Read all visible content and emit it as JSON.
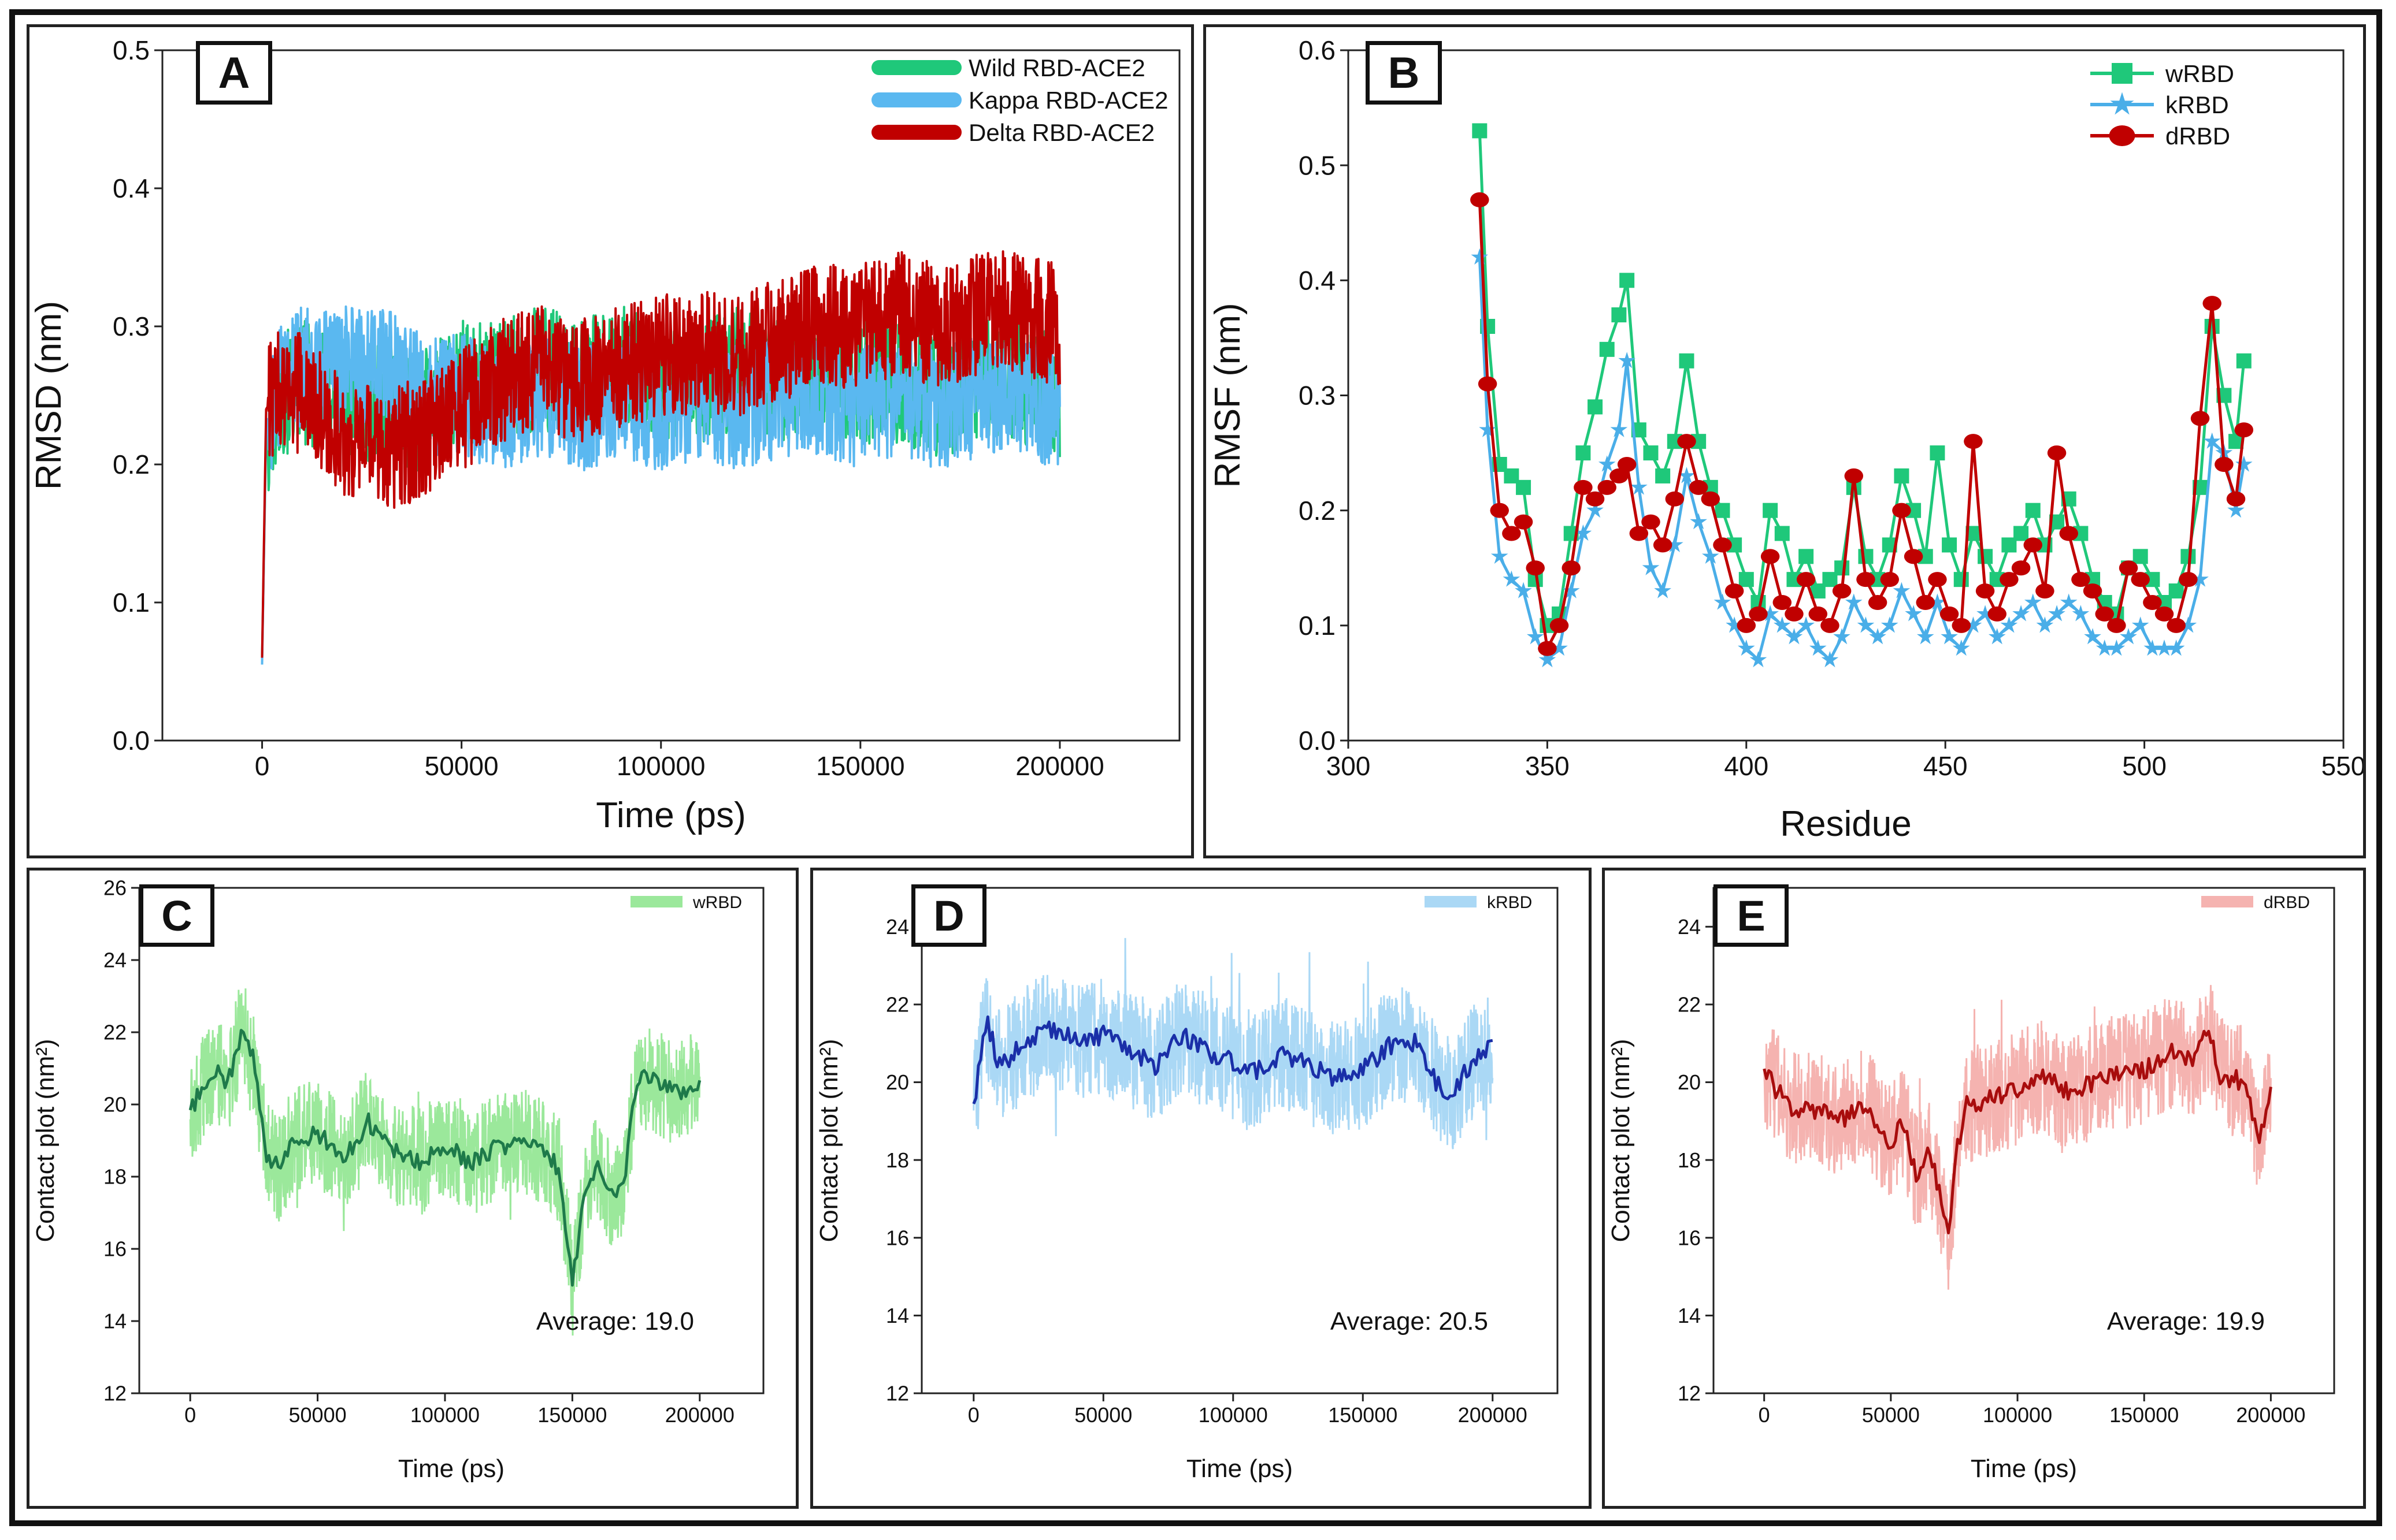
{
  "chart_data": [
    {
      "id": "A",
      "type": "line",
      "letter": "A",
      "xlabel": "Time (ps)",
      "ylabel": "RMSD (nm)",
      "xlim": [
        -25000,
        230000
      ],
      "ylim": [
        0,
        0.5
      ],
      "xticks": [
        0,
        50000,
        100000,
        150000,
        200000
      ],
      "xtick_labels": [
        "0",
        "50000",
        "100000",
        "150000",
        "200000"
      ],
      "yticks": [
        0,
        0.1,
        0.2,
        0.3,
        0.4,
        0.5
      ],
      "ytick_labels": [
        "0.0",
        "0.1",
        "0.2",
        "0.3",
        "0.4",
        "0.5"
      ],
      "legend_position": "top-right",
      "series": [
        {
          "name": "Wild RBD-ACE2",
          "color": "#1fc87a",
          "x": [
            0,
            1000,
            5000,
            10000,
            20000,
            30000,
            40000,
            50000,
            60000,
            70000,
            80000,
            90000,
            100000,
            110000,
            120000,
            130000,
            140000,
            150000,
            160000,
            170000,
            180000,
            190000,
            200000
          ],
          "values": [
            0.06,
            0.22,
            0.25,
            0.26,
            0.25,
            0.24,
            0.24,
            0.26,
            0.26,
            0.27,
            0.26,
            0.27,
            0.26,
            0.26,
            0.27,
            0.26,
            0.27,
            0.26,
            0.26,
            0.25,
            0.26,
            0.26,
            0.25
          ]
        },
        {
          "name": "Kappa RBD-ACE2",
          "color": "#5ab8f0",
          "x": [
            0,
            1000,
            5000,
            10000,
            20000,
            30000,
            40000,
            50000,
            60000,
            70000,
            80000,
            90000,
            100000,
            110000,
            120000,
            130000,
            140000,
            150000,
            160000,
            170000,
            180000,
            190000,
            200000
          ],
          "values": [
            0.055,
            0.23,
            0.26,
            0.27,
            0.27,
            0.27,
            0.25,
            0.25,
            0.24,
            0.25,
            0.24,
            0.25,
            0.24,
            0.25,
            0.24,
            0.25,
            0.25,
            0.24,
            0.25,
            0.24,
            0.25,
            0.25,
            0.24
          ]
        },
        {
          "name": "Delta RBD-ACE2",
          "color": "#c00000",
          "x": [
            0,
            1000,
            5000,
            10000,
            20000,
            30000,
            40000,
            50000,
            60000,
            70000,
            80000,
            90000,
            100000,
            110000,
            120000,
            130000,
            140000,
            150000,
            160000,
            170000,
            180000,
            190000,
            200000
          ],
          "values": [
            0.06,
            0.24,
            0.26,
            0.25,
            0.22,
            0.21,
            0.22,
            0.24,
            0.26,
            0.27,
            0.26,
            0.27,
            0.28,
            0.28,
            0.28,
            0.29,
            0.3,
            0.3,
            0.31,
            0.3,
            0.31,
            0.31,
            0.3
          ]
        }
      ]
    },
    {
      "id": "B",
      "type": "line",
      "letter": "B",
      "xlabel": "Residue",
      "ylabel": "RMSF (nm)",
      "xlim": [
        300,
        550
      ],
      "ylim": [
        0,
        0.6
      ],
      "xticks": [
        300,
        350,
        400,
        450,
        500,
        550
      ],
      "xtick_labels": [
        "300",
        "350",
        "400",
        "450",
        "500",
        "550"
      ],
      "yticks": [
        0,
        0.1,
        0.2,
        0.3,
        0.4,
        0.5,
        0.6
      ],
      "ytick_labels": [
        "0.0",
        "0.1",
        "0.2",
        "0.3",
        "0.4",
        "0.5",
        "0.6"
      ],
      "legend_position": "top-right",
      "series": [
        {
          "name": "wRBD",
          "color": "#1fc87a",
          "marker": "square",
          "x": [
            333,
            335,
            338,
            341,
            344,
            347,
            350,
            353,
            356,
            359,
            362,
            365,
            368,
            370,
            373,
            376,
            379,
            382,
            385,
            388,
            391,
            394,
            397,
            400,
            403,
            406,
            409,
            412,
            415,
            418,
            421,
            424,
            427,
            430,
            433,
            436,
            439,
            442,
            445,
            448,
            451,
            454,
            457,
            460,
            463,
            466,
            469,
            472,
            475,
            478,
            481,
            484,
            487,
            490,
            493,
            496,
            499,
            502,
            505,
            508,
            511,
            514,
            517,
            520,
            523,
            525
          ],
          "values": [
            0.53,
            0.36,
            0.24,
            0.23,
            0.22,
            0.14,
            0.1,
            0.11,
            0.18,
            0.25,
            0.29,
            0.34,
            0.37,
            0.4,
            0.27,
            0.25,
            0.23,
            0.26,
            0.33,
            0.26,
            0.22,
            0.2,
            0.17,
            0.14,
            0.12,
            0.2,
            0.18,
            0.14,
            0.16,
            0.13,
            0.14,
            0.15,
            0.22,
            0.16,
            0.14,
            0.17,
            0.23,
            0.2,
            0.16,
            0.25,
            0.17,
            0.14,
            0.18,
            0.16,
            0.14,
            0.17,
            0.18,
            0.2,
            0.17,
            0.19,
            0.21,
            0.18,
            0.14,
            0.12,
            0.11,
            0.15,
            0.16,
            0.14,
            0.12,
            0.13,
            0.16,
            0.22,
            0.36,
            0.3,
            0.26,
            0.33
          ]
        },
        {
          "name": "kRBD",
          "color": "#4aaee8",
          "marker": "star",
          "x": [
            333,
            335,
            338,
            341,
            344,
            347,
            350,
            353,
            356,
            359,
            362,
            365,
            368,
            370,
            373,
            376,
            379,
            382,
            385,
            388,
            391,
            394,
            397,
            400,
            403,
            406,
            409,
            412,
            415,
            418,
            421,
            424,
            427,
            430,
            433,
            436,
            439,
            442,
            445,
            448,
            451,
            454,
            457,
            460,
            463,
            466,
            469,
            472,
            475,
            478,
            481,
            484,
            487,
            490,
            493,
            496,
            499,
            502,
            505,
            508,
            511,
            514,
            517,
            520,
            523,
            525
          ],
          "values": [
            0.42,
            0.27,
            0.16,
            0.14,
            0.13,
            0.09,
            0.07,
            0.08,
            0.13,
            0.18,
            0.2,
            0.24,
            0.27,
            0.33,
            0.22,
            0.15,
            0.13,
            0.17,
            0.23,
            0.19,
            0.16,
            0.12,
            0.1,
            0.08,
            0.07,
            0.11,
            0.1,
            0.09,
            0.1,
            0.08,
            0.07,
            0.09,
            0.12,
            0.1,
            0.09,
            0.1,
            0.13,
            0.11,
            0.09,
            0.12,
            0.09,
            0.08,
            0.1,
            0.11,
            0.09,
            0.1,
            0.11,
            0.12,
            0.1,
            0.11,
            0.12,
            0.11,
            0.09,
            0.08,
            0.08,
            0.09,
            0.1,
            0.08,
            0.08,
            0.08,
            0.1,
            0.14,
            0.26,
            0.25,
            0.2,
            0.24
          ]
        },
        {
          "name": "dRBD",
          "color": "#c00000",
          "marker": "circle",
          "x": [
            333,
            335,
            338,
            341,
            344,
            347,
            350,
            353,
            356,
            359,
            362,
            365,
            368,
            370,
            373,
            376,
            379,
            382,
            385,
            388,
            391,
            394,
            397,
            400,
            403,
            406,
            409,
            412,
            415,
            418,
            421,
            424,
            427,
            430,
            433,
            436,
            439,
            442,
            445,
            448,
            451,
            454,
            457,
            460,
            463,
            466,
            469,
            472,
            475,
            478,
            481,
            484,
            487,
            490,
            493,
            496,
            499,
            502,
            505,
            508,
            511,
            514,
            517,
            520,
            523,
            525
          ],
          "values": [
            0.47,
            0.31,
            0.2,
            0.18,
            0.19,
            0.15,
            0.08,
            0.1,
            0.15,
            0.22,
            0.21,
            0.22,
            0.23,
            0.24,
            0.18,
            0.19,
            0.17,
            0.21,
            0.26,
            0.22,
            0.21,
            0.17,
            0.13,
            0.1,
            0.11,
            0.16,
            0.12,
            0.11,
            0.14,
            0.11,
            0.1,
            0.13,
            0.23,
            0.14,
            0.12,
            0.14,
            0.2,
            0.16,
            0.12,
            0.14,
            0.11,
            0.1,
            0.26,
            0.13,
            0.11,
            0.14,
            0.15,
            0.17,
            0.13,
            0.25,
            0.18,
            0.14,
            0.13,
            0.11,
            0.1,
            0.15,
            0.14,
            0.12,
            0.11,
            0.1,
            0.14,
            0.28,
            0.38,
            0.24,
            0.21,
            0.27
          ]
        }
      ]
    },
    {
      "id": "C",
      "type": "line",
      "letter": "C",
      "xlabel": "Time (ps)",
      "ylabel": "Contact plot (nm²)",
      "xlim": [
        -20000,
        225000
      ],
      "ylim": [
        12,
        26
      ],
      "xticks": [
        0,
        50000,
        100000,
        150000,
        200000
      ],
      "xtick_labels": [
        "0",
        "50000",
        "100000",
        "150000",
        "200000"
      ],
      "yticks": [
        12,
        14,
        16,
        18,
        20,
        22,
        24,
        26
      ],
      "ytick_labels": [
        "12",
        "14",
        "16",
        "18",
        "20",
        "22",
        "24",
        "26"
      ],
      "legend_position": "top-right",
      "legend": "wRBD",
      "raw_color": "#9be89b",
      "avg_color": "#1e7a4a",
      "average_label": "Average: 19.0",
      "x": [
        0,
        5000,
        10000,
        15000,
        20000,
        25000,
        30000,
        35000,
        40000,
        50000,
        60000,
        70000,
        80000,
        90000,
        100000,
        110000,
        120000,
        130000,
        140000,
        145000,
        150000,
        155000,
        160000,
        165000,
        170000,
        175000,
        180000,
        190000,
        200000
      ],
      "values": [
        19.8,
        20.5,
        21.0,
        20.6,
        22.0,
        21.2,
        18.6,
        18.2,
        19.0,
        19.2,
        18.5,
        19.5,
        18.7,
        18.4,
        18.9,
        18.4,
        18.8,
        19.0,
        18.6,
        18.2,
        15.0,
        17.6,
        18.4,
        17.4,
        17.6,
        20.6,
        20.8,
        20.3,
        20.6
      ]
    },
    {
      "id": "D",
      "type": "line",
      "letter": "D",
      "xlabel": "Time (ps)",
      "ylabel": "Contact plot (nm²)",
      "xlim": [
        -20000,
        225000
      ],
      "ylim": [
        12,
        25
      ],
      "xticks": [
        0,
        50000,
        100000,
        150000,
        200000
      ],
      "xtick_labels": [
        "0",
        "50000",
        "100000",
        "150000",
        "200000"
      ],
      "yticks": [
        12,
        14,
        16,
        18,
        20,
        22,
        24
      ],
      "ytick_labels": [
        "12",
        "14",
        "16",
        "18",
        "20",
        "22",
        "24"
      ],
      "legend_position": "top-right",
      "legend": "kRBD",
      "raw_color": "#aad8f5",
      "avg_color": "#1a2fa8",
      "average_label": "Average: 20.5",
      "x": [
        0,
        5000,
        10000,
        20000,
        30000,
        40000,
        50000,
        60000,
        70000,
        80000,
        90000,
        100000,
        110000,
        120000,
        130000,
        140000,
        150000,
        160000,
        170000,
        180000,
        185000,
        190000,
        200000
      ],
      "values": [
        19.4,
        21.6,
        20.4,
        21.0,
        21.4,
        21.0,
        21.2,
        20.8,
        20.4,
        21.2,
        20.8,
        20.5,
        20.3,
        20.7,
        20.4,
        20.1,
        20.3,
        20.9,
        21.0,
        19.8,
        19.7,
        20.3,
        21.0
      ]
    },
    {
      "id": "E",
      "type": "line",
      "letter": "E",
      "xlabel": "Time (ps)",
      "ylabel": "Contact plot (nm²)",
      "xlim": [
        -20000,
        225000
      ],
      "ylim": [
        12,
        25
      ],
      "xticks": [
        0,
        50000,
        100000,
        150000,
        200000
      ],
      "xtick_labels": [
        "0",
        "50000",
        "100000",
        "150000",
        "200000"
      ],
      "yticks": [
        12,
        14,
        16,
        18,
        20,
        22,
        24
      ],
      "ytick_labels": [
        "12",
        "14",
        "16",
        "18",
        "20",
        "22",
        "24"
      ],
      "legend_position": "top-right",
      "legend": "dRBD",
      "raw_color": "#f5b3b0",
      "avg_color": "#a80d0d",
      "average_label": "Average: 19.9",
      "x": [
        0,
        5000,
        10000,
        20000,
        30000,
        40000,
        50000,
        55000,
        60000,
        65000,
        70000,
        73000,
        76000,
        80000,
        90000,
        100000,
        110000,
        120000,
        130000,
        140000,
        150000,
        160000,
        170000,
        175000,
        180000,
        190000,
        195000,
        200000
      ],
      "values": [
        20.3,
        19.8,
        19.3,
        19.3,
        19.0,
        19.4,
        18.4,
        19.0,
        17.6,
        18.2,
        17.0,
        16.0,
        18.2,
        19.4,
        19.6,
        19.8,
        20.2,
        19.7,
        20.0,
        20.3,
        20.3,
        20.8,
        20.5,
        21.4,
        20.2,
        20.0,
        18.4,
        19.8
      ]
    }
  ]
}
